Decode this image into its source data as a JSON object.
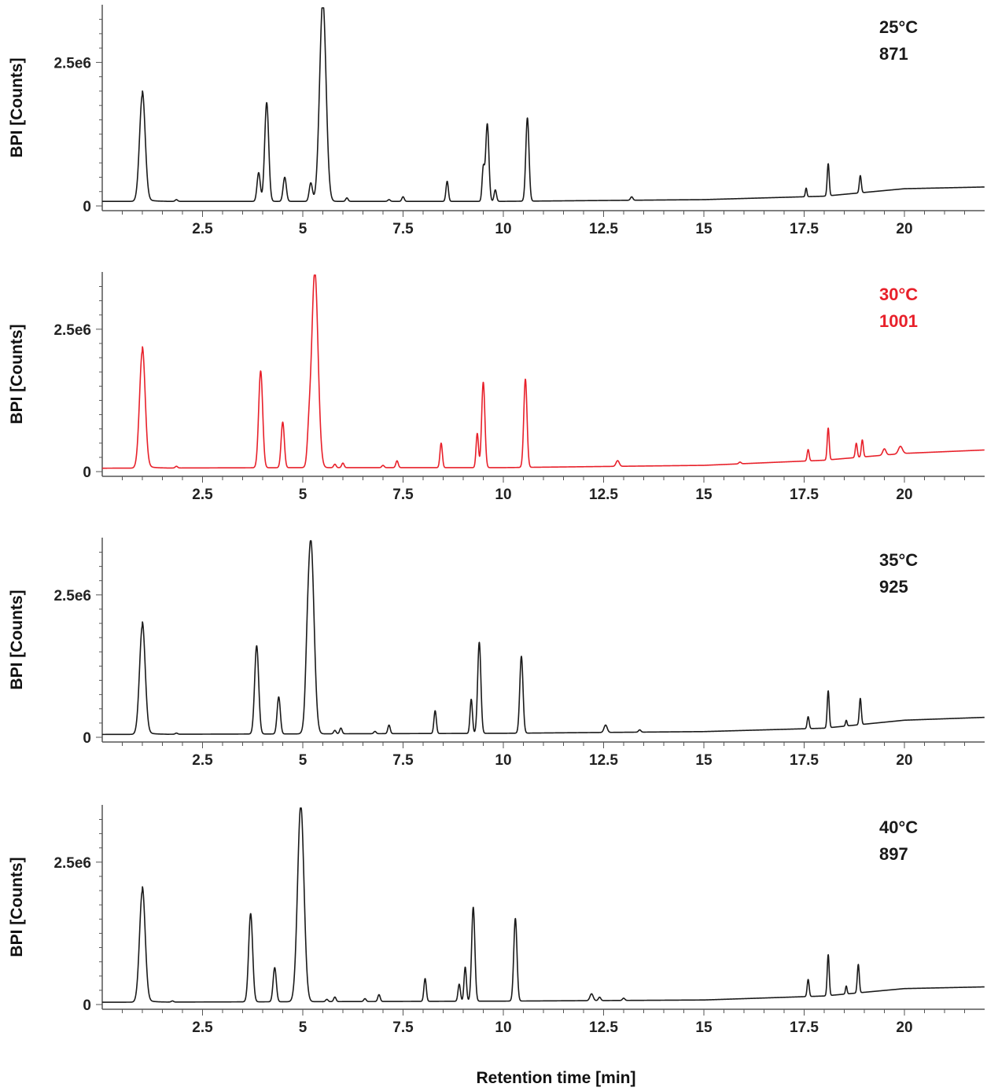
{
  "figure": {
    "xlabel": "Retention time [min]",
    "baseline_color": "#1a1a1a",
    "highlight_color": "#e8202a",
    "axis_color": "#555555"
  },
  "chart_data": [
    {
      "type": "line",
      "title": "",
      "ylabel": "BPI [Counts]",
      "xlim": [
        0,
        22
      ],
      "ylim": [
        0,
        3450000
      ],
      "xticks": [
        2.5,
        5,
        7.5,
        10,
        12.5,
        15,
        17.5,
        20
      ],
      "xtick_labels": [
        "2.5",
        "5",
        "7.5",
        "10",
        "12.5",
        "15",
        "17.5",
        "20"
      ],
      "yticks": [
        0,
        2500000
      ],
      "ytick_labels": [
        "0",
        "2.5e6"
      ],
      "annotation": [
        "25°C",
        "871"
      ],
      "color": "#1a1a1a",
      "baseline": [
        [
          0,
          80000
        ],
        [
          5,
          80000
        ],
        [
          10,
          80000
        ],
        [
          15,
          110000
        ],
        [
          18,
          170000
        ],
        [
          20,
          300000
        ],
        [
          22,
          330000
        ]
      ],
      "peaks": [
        [
          1.0,
          1850000,
          0.07
        ],
        [
          1.85,
          30000,
          0.03
        ],
        [
          3.9,
          500000,
          0.04
        ],
        [
          4.1,
          1720000,
          0.05
        ],
        [
          4.55,
          420000,
          0.04
        ],
        [
          5.2,
          320000,
          0.04
        ],
        [
          5.5,
          3500000,
          0.08
        ],
        [
          6.1,
          60000,
          0.03
        ],
        [
          7.15,
          30000,
          0.03
        ],
        [
          7.5,
          80000,
          0.03
        ],
        [
          8.6,
          350000,
          0.03
        ],
        [
          9.5,
          570000,
          0.03
        ],
        [
          9.6,
          1350000,
          0.04
        ],
        [
          9.8,
          200000,
          0.03
        ],
        [
          10.6,
          1450000,
          0.04
        ],
        [
          13.2,
          60000,
          0.03
        ],
        [
          17.55,
          150000,
          0.02
        ],
        [
          18.1,
          560000,
          0.025
        ],
        [
          18.9,
          300000,
          0.025
        ]
      ]
    },
    {
      "type": "line",
      "title": "",
      "ylabel": "BPI [Counts]",
      "xlim": [
        0,
        22
      ],
      "ylim": [
        0,
        3450000
      ],
      "xticks": [
        2.5,
        5,
        7.5,
        10,
        12.5,
        15,
        17.5,
        20
      ],
      "xtick_labels": [
        "2.5",
        "5",
        "7.5",
        "10",
        "12.5",
        "15",
        "17.5",
        "20"
      ],
      "yticks": [
        0,
        2500000
      ],
      "ytick_labels": [
        "0",
        "2.5e6"
      ],
      "annotation": [
        "30°C",
        "1001"
      ],
      "color": "#e8202a",
      "baseline": [
        [
          0,
          60000
        ],
        [
          5,
          70000
        ],
        [
          10,
          70000
        ],
        [
          15,
          110000
        ],
        [
          18,
          200000
        ],
        [
          20,
          320000
        ],
        [
          22,
          380000
        ]
      ],
      "peaks": [
        [
          1.0,
          2050000,
          0.07
        ],
        [
          1.85,
          30000,
          0.03
        ],
        [
          3.95,
          1700000,
          0.05
        ],
        [
          4.5,
          800000,
          0.04
        ],
        [
          5.15,
          400000,
          0.04
        ],
        [
          5.3,
          3450000,
          0.08
        ],
        [
          5.8,
          60000,
          0.03
        ],
        [
          6.0,
          80000,
          0.03
        ],
        [
          7.0,
          40000,
          0.03
        ],
        [
          7.35,
          120000,
          0.03
        ],
        [
          8.45,
          430000,
          0.03
        ],
        [
          9.35,
          600000,
          0.03
        ],
        [
          9.5,
          1500000,
          0.04
        ],
        [
          10.55,
          1550000,
          0.04
        ],
        [
          12.85,
          100000,
          0.04
        ],
        [
          15.9,
          30000,
          0.03
        ],
        [
          17.6,
          200000,
          0.025
        ],
        [
          18.1,
          560000,
          0.025
        ],
        [
          18.8,
          250000,
          0.025
        ],
        [
          18.95,
          300000,
          0.025
        ],
        [
          19.5,
          110000,
          0.04
        ],
        [
          19.9,
          130000,
          0.05
        ]
      ]
    },
    {
      "type": "line",
      "title": "",
      "ylabel": "BPI [Counts]",
      "xlim": [
        0,
        22
      ],
      "ylim": [
        0,
        3450000
      ],
      "xticks": [
        2.5,
        5,
        7.5,
        10,
        12.5,
        15,
        17.5,
        20
      ],
      "xtick_labels": [
        "2.5",
        "5",
        "7.5",
        "10",
        "12.5",
        "15",
        "17.5",
        "20"
      ],
      "yticks": [
        0,
        2500000
      ],
      "ytick_labels": [
        "0",
        "2.5e6"
      ],
      "annotation": [
        "35°C",
        "925"
      ],
      "color": "#1a1a1a",
      "baseline": [
        [
          0,
          50000
        ],
        [
          5,
          60000
        ],
        [
          10,
          70000
        ],
        [
          15,
          100000
        ],
        [
          18,
          160000
        ],
        [
          20,
          300000
        ],
        [
          22,
          350000
        ]
      ],
      "peaks": [
        [
          1.0,
          1900000,
          0.07
        ],
        [
          1.85,
          20000,
          0.03
        ],
        [
          3.85,
          1550000,
          0.05
        ],
        [
          4.4,
          650000,
          0.04
        ],
        [
          5.1,
          320000,
          0.04
        ],
        [
          5.2,
          3400000,
          0.08
        ],
        [
          5.8,
          60000,
          0.03
        ],
        [
          5.95,
          100000,
          0.03
        ],
        [
          6.8,
          40000,
          0.03
        ],
        [
          7.15,
          150000,
          0.03
        ],
        [
          8.3,
          400000,
          0.03
        ],
        [
          9.2,
          600000,
          0.03
        ],
        [
          9.4,
          1600000,
          0.04
        ],
        [
          10.45,
          1350000,
          0.04
        ],
        [
          12.55,
          130000,
          0.04
        ],
        [
          13.4,
          40000,
          0.03
        ],
        [
          17.6,
          210000,
          0.025
        ],
        [
          18.1,
          650000,
          0.025
        ],
        [
          18.55,
          100000,
          0.02
        ],
        [
          18.9,
          460000,
          0.025
        ]
      ]
    },
    {
      "type": "line",
      "title": "",
      "ylabel": "BPI [Counts]",
      "xlim": [
        0,
        22
      ],
      "ylim": [
        0,
        3450000
      ],
      "xticks": [
        2.5,
        5,
        7.5,
        10,
        12.5,
        15,
        17.5,
        20
      ],
      "xtick_labels": [
        "2.5",
        "5",
        "7.5",
        "10",
        "12.5",
        "15",
        "17.5",
        "20"
      ],
      "yticks": [
        0,
        2500000
      ],
      "ytick_labels": [
        "0",
        "2.5e6"
      ],
      "annotation": [
        "40°C",
        "897"
      ],
      "color": "#1a1a1a",
      "baseline": [
        [
          0,
          40000
        ],
        [
          5,
          50000
        ],
        [
          10,
          60000
        ],
        [
          15,
          80000
        ],
        [
          18,
          150000
        ],
        [
          20,
          280000
        ],
        [
          22,
          310000
        ]
      ],
      "peaks": [
        [
          1.0,
          1950000,
          0.07
        ],
        [
          1.75,
          20000,
          0.03
        ],
        [
          3.7,
          1550000,
          0.05
        ],
        [
          4.3,
          600000,
          0.04
        ],
        [
          4.95,
          3450000,
          0.08
        ],
        [
          5.6,
          40000,
          0.03
        ],
        [
          5.8,
          80000,
          0.03
        ],
        [
          6.55,
          50000,
          0.03
        ],
        [
          6.9,
          120000,
          0.03
        ],
        [
          8.05,
          400000,
          0.03
        ],
        [
          8.9,
          300000,
          0.03
        ],
        [
          9.05,
          600000,
          0.03
        ],
        [
          9.25,
          1650000,
          0.04
        ],
        [
          10.3,
          1450000,
          0.04
        ],
        [
          12.2,
          120000,
          0.04
        ],
        [
          12.4,
          60000,
          0.03
        ],
        [
          13.0,
          40000,
          0.03
        ],
        [
          17.6,
          300000,
          0.025
        ],
        [
          18.1,
          720000,
          0.025
        ],
        [
          18.55,
          140000,
          0.02
        ],
        [
          18.85,
          500000,
          0.025
        ]
      ]
    }
  ]
}
